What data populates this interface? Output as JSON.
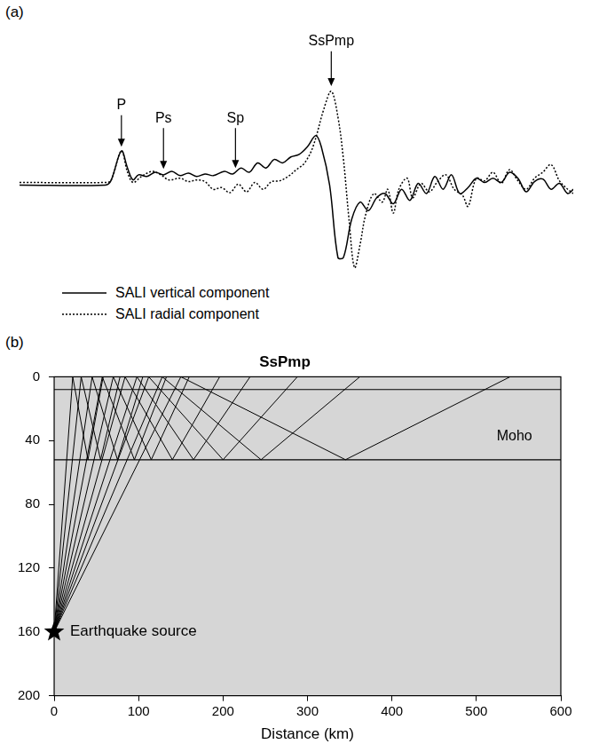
{
  "chart_data": [
    {
      "type": "line",
      "panel": "(a)",
      "tick_labels": false,
      "grid": false,
      "legend": "bottom-left",
      "xlim": [
        0,
        100
      ],
      "ylim": [
        -11,
        19
      ],
      "series": [
        {
          "name": "SALI vertical component",
          "color": "#000000",
          "line_style": "solid",
          "x": [
            0,
            15.5,
            16.5,
            18.4,
            19.5,
            20.5,
            21.5,
            23,
            24.5,
            26,
            27.5,
            29,
            30.5,
            32,
            33.5,
            35,
            37,
            38.5,
            40,
            41.5,
            43,
            44.5,
            46,
            47.5,
            49,
            50.5,
            52,
            53.5,
            54.5,
            56,
            57.5,
            58.5,
            60,
            61.5,
            63,
            64.5,
            66,
            67.5,
            69,
            70.5,
            72,
            73.5,
            75,
            76.5,
            78,
            79.5,
            81,
            82.5,
            84,
            85.5,
            87,
            88.5,
            90,
            91.5,
            93,
            94.5,
            96,
            97.5,
            99,
            100
          ],
          "values": [
            0,
            0,
            0.5,
            4.0,
            2.0,
            0.6,
            1.2,
            1.0,
            1.5,
            1.2,
            1.6,
            1.1,
            1.4,
            1.0,
            1.3,
            1.1,
            1.6,
            1.3,
            2.0,
            1.5,
            2.6,
            2.0,
            3.0,
            2.6,
            3.3,
            3.6,
            4.5,
            5.8,
            4.5,
            0,
            -8.5,
            -8.5,
            -4,
            -2.0,
            -3.0,
            -1.5,
            -1.0,
            -2.2,
            -0.5,
            -1.8,
            0.2,
            -1.0,
            1.0,
            -0.5,
            1.2,
            -1.0,
            -0.3,
            0.8,
            0.3,
            0.8,
            0.3,
            1.5,
            0.8,
            -0.8,
            0.4,
            0.7,
            -0.5,
            0.2,
            -1.0,
            -0.5
          ]
        },
        {
          "name": "SALI radial component",
          "color": "#000000",
          "line_style": "dotted",
          "x": [
            0,
            15.5,
            16.5,
            18.4,
            19.5,
            20.5,
            22,
            24,
            25.5,
            27,
            29,
            30.5,
            32,
            33.5,
            35,
            36.5,
            38,
            39.5,
            41,
            42.5,
            44,
            45.5,
            47,
            48.5,
            50,
            51.5,
            53,
            55,
            56.3,
            57.5,
            58.5,
            59.5,
            60.5,
            61.5,
            62.5,
            64,
            65.5,
            66.5,
            67.5,
            68.5,
            70,
            71,
            72.5,
            74,
            75.5,
            77,
            78.5,
            80,
            81,
            82.5,
            84,
            85.5,
            87,
            88.5,
            90,
            91.5,
            93,
            94.5,
            96,
            97.5,
            99,
            100
          ],
          "values": [
            0.3,
            0.3,
            0.5,
            4.0,
            1.5,
            0.3,
            1.0,
            1.6,
            1.2,
            0.6,
            0.8,
            0.4,
            0.6,
            0.4,
            -0.5,
            -0.3,
            -0.9,
            0.1,
            -0.8,
            0.3,
            -0.5,
            0.4,
            0.5,
            1.0,
            1.8,
            2.6,
            4.5,
            9.0,
            11.0,
            8.0,
            3.0,
            -4.0,
            -9.7,
            -7.0,
            -3.5,
            -1.0,
            -2.0,
            -0.5,
            -3.3,
            -0.5,
            0.8,
            -1.5,
            0.2,
            -0.8,
            0.4,
            1.2,
            -0.5,
            -1.2,
            -2.5,
            0.8,
            0.5,
            1.5,
            0.2,
            1.8,
            0.5,
            -0.5,
            0.8,
            1.5,
            2.4,
            0.5,
            -0.5,
            -1.0
          ]
        }
      ],
      "annotations": [
        {
          "text": "P",
          "x": 18.4,
          "y": 8.5,
          "arrow_y": 4.5
        },
        {
          "text": "Ps",
          "x": 26,
          "y": 7,
          "arrow_y": 1.9
        },
        {
          "text": "Sp",
          "x": 39,
          "y": 7,
          "arrow_y": 2.0
        },
        {
          "text": "SsPmp",
          "x": 56.3,
          "y": 16,
          "arrow_y": 11.6
        }
      ]
    },
    {
      "type": "line",
      "panel": "(b)",
      "title": "SsPmp",
      "x_label": "Distance (km)",
      "grid": false,
      "xlim": [
        0,
        600
      ],
      "xticks": [
        0,
        100,
        200,
        300,
        400,
        500,
        600
      ],
      "ylim": [
        0,
        200
      ],
      "yticks": [
        0,
        40,
        80,
        120,
        160,
        200
      ],
      "y_reversed": true,
      "color": "#000000",
      "layers": [
        8,
        52
      ],
      "rays": [
        {
          "x": [
            0,
            22,
            40,
            58
          ],
          "y": [
            160,
            0,
            52,
            0
          ]
        },
        {
          "x": [
            0,
            32,
            55,
            78
          ],
          "y": [
            160,
            0,
            52,
            0
          ]
        },
        {
          "x": [
            0,
            45,
            75,
            105
          ],
          "y": [
            160,
            0,
            52,
            0
          ]
        },
        {
          "x": [
            0,
            57,
            95,
            133
          ],
          "y": [
            160,
            0,
            52,
            0
          ]
        },
        {
          "x": [
            0,
            70,
            115,
            160
          ],
          "y": [
            160,
            0,
            52,
            0
          ]
        },
        {
          "x": [
            0,
            84,
            140,
            196
          ],
          "y": [
            160,
            0,
            52,
            0
          ]
        },
        {
          "x": [
            0,
            98,
            165,
            232
          ],
          "y": [
            160,
            0,
            52,
            0
          ]
        },
        {
          "x": [
            0,
            112,
            200,
            288
          ],
          "y": [
            160,
            0,
            52,
            0
          ]
        },
        {
          "x": [
            0,
            128,
            245,
            362
          ],
          "y": [
            160,
            0,
            52,
            0
          ]
        },
        {
          "x": [
            0,
            150,
            345,
            540
          ],
          "y": [
            160,
            0,
            52,
            0
          ]
        }
      ],
      "source": {
        "x": 0,
        "y": 160,
        "label": "Earthquake source",
        "marker": "star"
      },
      "annotations": [
        {
          "text": "Moho",
          "x": 545,
          "y": 42
        }
      ]
    }
  ]
}
